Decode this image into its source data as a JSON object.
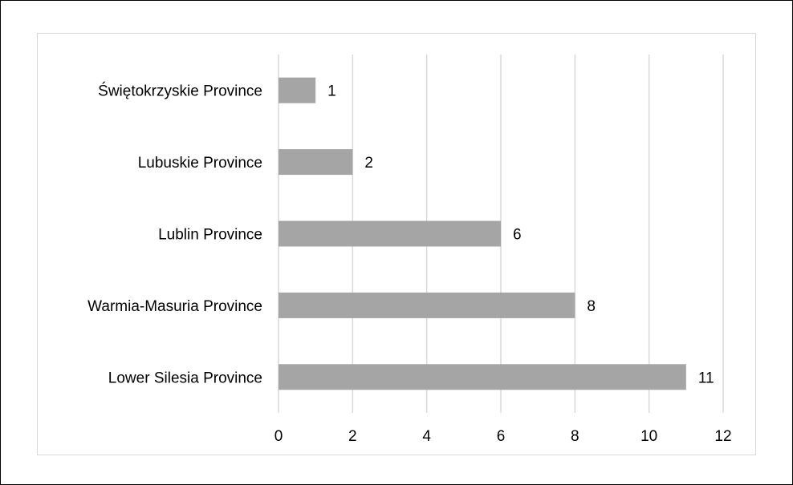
{
  "chart_data": {
    "type": "bar",
    "orientation": "horizontal",
    "categories": [
      "Świętokrzyskie Province",
      "Lubuskie Province",
      "Lublin Province",
      "Warmia-Masuria Province",
      "Lower Silesia Province"
    ],
    "values": [
      1,
      2,
      6,
      8,
      11
    ],
    "data_labels": [
      "1",
      "2",
      "6",
      "8",
      "11"
    ],
    "x_ticks": [
      "0",
      "2",
      "4",
      "6",
      "8",
      "10",
      "12"
    ],
    "xlim": [
      0,
      12
    ],
    "grid": "vertical",
    "legend": "none",
    "bar_color": "#a5a5a5",
    "grid_color": "#d9d9d9",
    "title": "",
    "xlabel": "",
    "ylabel": ""
  }
}
